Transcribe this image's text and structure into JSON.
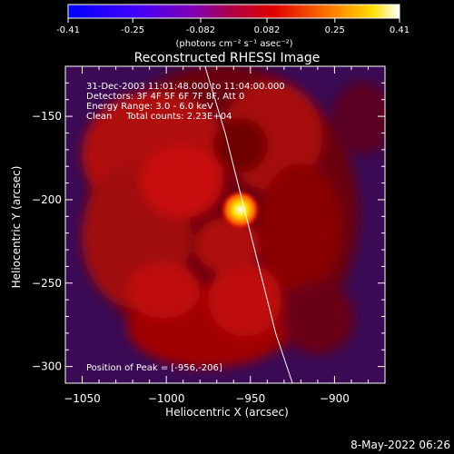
{
  "colorbar": {
    "ticks": [
      "-0.41",
      "-0.25",
      "-0.082",
      "0.082",
      "0.25",
      "0.41"
    ],
    "min": -0.41,
    "max": 0.41,
    "unit_label": "(photons cm⁻² s⁻¹ asec⁻²)"
  },
  "title": "Reconstructed RHESSI Image",
  "info": {
    "time_range": "31-Dec-2003 11:01:48.000 to 11:04:00.000",
    "detectors": "Detectors: 3F 4F 5F 6F 7F 8F, Att 0",
    "energy": "Energy Range: 3.0 - 6.0 keV",
    "clean": "Clean     Total counts: 2.23E+04",
    "peak": "Position of Peak = [-956,-206]"
  },
  "footer_date": "8-May-2022 06:26",
  "chart_data": {
    "type": "heatmap",
    "title": "Reconstructed RHESSI Image",
    "xlabel": "Heliocentric X (arcsec)",
    "ylabel": "Heliocentric Y (arcsec)",
    "xlim": [
      -1060,
      -870
    ],
    "ylim": [
      -310,
      -120
    ],
    "x_ticks": [
      -1050,
      -1000,
      -950,
      -900
    ],
    "y_ticks": [
      -150,
      -200,
      -250,
      -300
    ],
    "x_tick_labels": [
      "−1050",
      "−1000",
      "−950",
      "−900"
    ],
    "y_tick_labels": [
      "−150",
      "−200",
      "−250",
      "−300"
    ],
    "peak": {
      "x": -956,
      "y": -206
    },
    "colormap": "hot",
    "limb": {
      "x": [
        -977,
        -965,
        -955,
        -945,
        -935,
        -925
      ],
      "y": [
        -120,
        -160,
        -200,
        -240,
        -280,
        -310
      ]
    }
  }
}
